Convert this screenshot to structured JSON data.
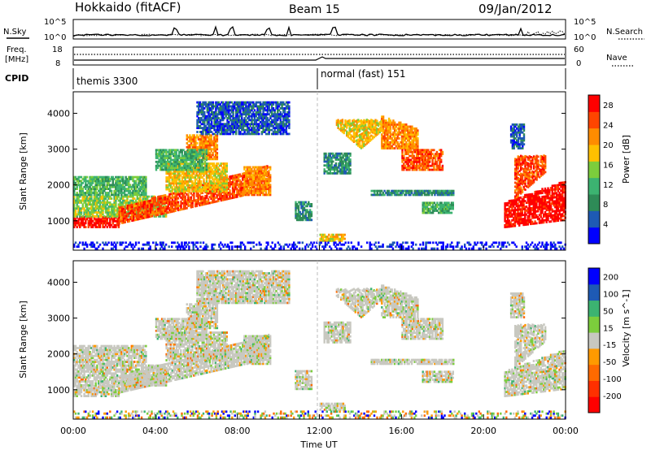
{
  "header": {
    "station": "Hokkaido (fitACF)",
    "beam": "Beam 15",
    "date": "09/Jan/2012"
  },
  "noise_panel": {
    "left_label": "N.Sky",
    "right_label": "N.Search",
    "left_ticks": [
      "10^5",
      "10^0"
    ],
    "right_ticks": [
      "10^5",
      "10^0"
    ]
  },
  "freq_panel": {
    "left_label_1": "Freq.",
    "left_label_2": "[MHz]",
    "right_label": "Nave",
    "left_ticks": [
      "18",
      "8"
    ],
    "right_ticks": [
      "60",
      "0"
    ]
  },
  "cpid_panel": {
    "label": "CPID",
    "mode_1": "themis 3300",
    "mode_2": "normal (fast) 151"
  },
  "colors": {
    "power": [
      "#0000ff",
      "#1e5ab4",
      "#2e8b57",
      "#3cb371",
      "#7ccd3c",
      "#ffc000",
      "#ff8c00",
      "#ff4500",
      "#ff0000"
    ],
    "velocity": [
      "#0000ff",
      "#1e5ab4",
      "#3cb371",
      "#7ccd3c",
      "#c8c8c0",
      "#ff9a00",
      "#ff6a00",
      "#ff3000",
      "#ff0000"
    ]
  },
  "chart_data": [
    {
      "type": "heatmap",
      "quantity": "Power",
      "xlabel": "Time UT",
      "ylabel": "Slant Range [km]",
      "colorbar_label": "Power [dB]",
      "x_ticks": [
        "00:00",
        "04:00",
        "08:00",
        "12:00",
        "16:00",
        "20:00",
        "00:00"
      ],
      "y_ticks": [
        "1000",
        "2000",
        "3000",
        "4000"
      ],
      "xlim_hours": [
        0,
        24
      ],
      "ylim_km": [
        180,
        4600
      ],
      "colorbar_ticks": [
        "4",
        "8",
        "12",
        "16",
        "20",
        "24",
        "28"
      ],
      "colorbar_range": [
        0,
        30
      ]
    },
    {
      "type": "heatmap",
      "quantity": "Velocity",
      "xlabel": "Time UT",
      "ylabel": "Slant Range [km]",
      "colorbar_label": "Velocity [m s^-1]",
      "x_ticks": [
        "00:00",
        "04:00",
        "08:00",
        "12:00",
        "16:00",
        "20:00",
        "00:00"
      ],
      "y_ticks": [
        "1000",
        "2000",
        "3000",
        "4000"
      ],
      "xlim_hours": [
        0,
        24
      ],
      "ylim_km": [
        180,
        4600
      ],
      "colorbar_ticks": [
        "200",
        "100",
        "50",
        "15",
        "-15",
        "-50",
        "-100",
        "-200"
      ]
    }
  ]
}
